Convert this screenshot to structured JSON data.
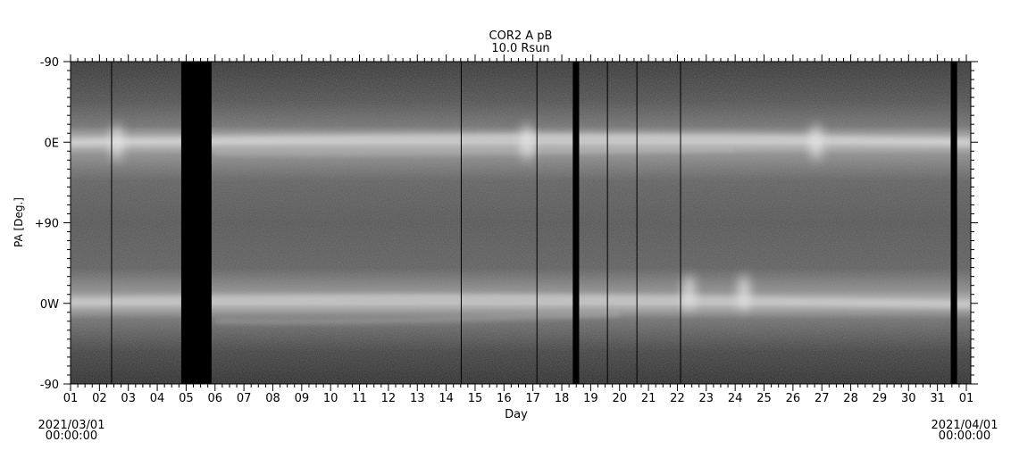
{
  "chart_data": {
    "type": "heatmap",
    "title": "COR2 A pB",
    "subtitle": "10.0 Rsun",
    "xlabel": "Day",
    "ylabel": "PA [Deg.]",
    "x_ticks": [
      "01",
      "02",
      "03",
      "04",
      "05",
      "06",
      "07",
      "08",
      "09",
      "10",
      "11",
      "12",
      "13",
      "14",
      "15",
      "16",
      "17",
      "18",
      "19",
      "20",
      "21",
      "22",
      "23",
      "24",
      "25",
      "26",
      "27",
      "28",
      "29",
      "30",
      "31",
      "01"
    ],
    "x_range_days": [
      1,
      32
    ],
    "y_ticks": [
      "-90",
      "0E",
      "+90",
      "0W",
      "-90"
    ],
    "y_range_deg": [
      -90,
      270
    ],
    "start_label": {
      "date": "2021/03/01",
      "time": "00:00:00"
    },
    "end_label": {
      "date": "2021/04/01",
      "time": "00:00:00"
    },
    "colormap": "grayscale",
    "bright_bands_pa": [
      "0E",
      "0W"
    ],
    "data_gaps_day": [
      [
        4.83,
        5.88
      ],
      [
        18.38,
        18.6
      ],
      [
        31.46,
        31.68
      ]
    ],
    "gap_lines_day": [
      2.42,
      14.52,
      17.14,
      19.58,
      20.6,
      22.11
    ],
    "transient_events_day": [
      2.6,
      16.8,
      22.4,
      24.3,
      26.8
    ]
  }
}
